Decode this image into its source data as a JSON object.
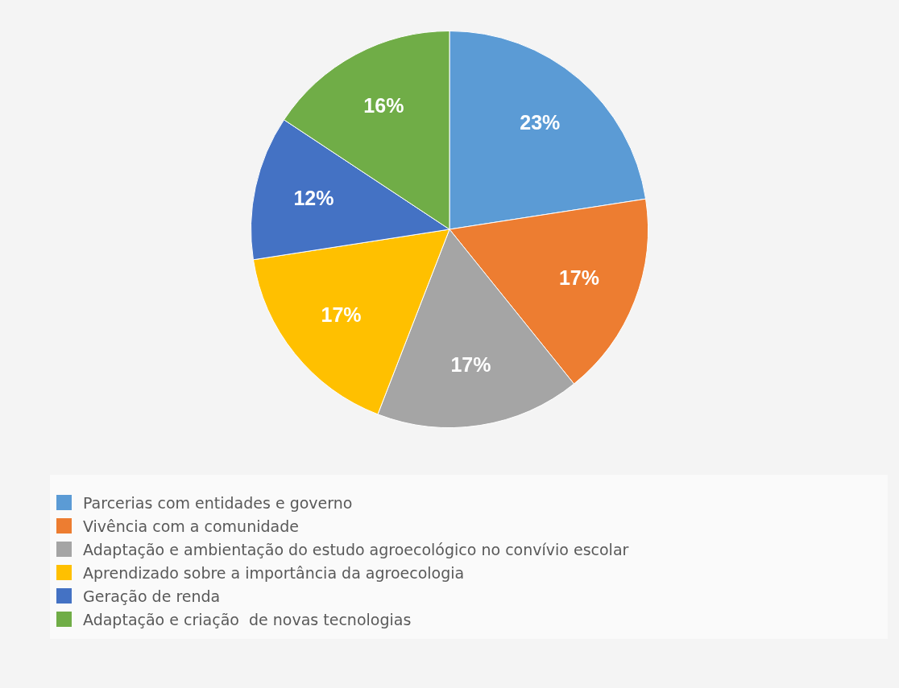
{
  "chart_data": {
    "type": "pie",
    "categories": [
      "Parcerias com entidades e governo",
      "Vivência com a comunidade",
      "Adaptação e ambientação do estudo agroecológico no convívio escolar",
      "Aprendizado sobre a importância da agroecologia",
      "Geração de renda",
      "Adaptação e criação  de novas tecnologias"
    ],
    "values": [
      23,
      17,
      17,
      17,
      12,
      16
    ],
    "colors": [
      "#5b9bd5",
      "#ed7d31",
      "#a5a5a5",
      "#ffc000",
      "#4472c4",
      "#70ad47"
    ],
    "value_labels": [
      "23%",
      "17%",
      "17%",
      "17%",
      "12%",
      "16%"
    ],
    "legend": "bottom"
  }
}
